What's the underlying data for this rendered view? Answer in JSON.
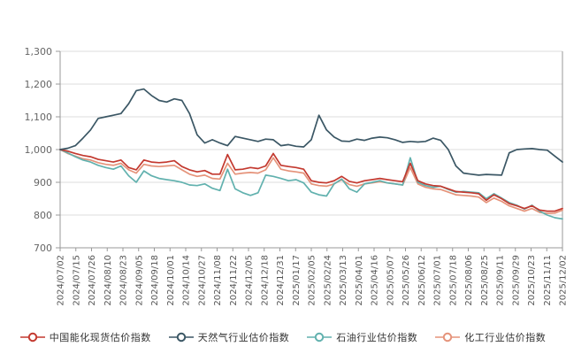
{
  "chart_data": {
    "type": "line",
    "title": "",
    "xlabel": "",
    "ylabel": "",
    "grid": true,
    "legend_position": "bottom",
    "ylim": [
      700,
      1300
    ],
    "y_tick_values": [
      700,
      800,
      900,
      1000,
      1100,
      1200,
      1300
    ],
    "y_tick_labels": [
      "700",
      "800",
      "900",
      "1,000",
      "1,100",
      "1,200",
      "1,300"
    ],
    "x_tick_labels": [
      "2024/07/02",
      "2024/07/15",
      "2024/07/26",
      "2024/08/10",
      "2024/08/23",
      "2024/09/05",
      "2024/09/18",
      "2024/10/01",
      "2024/10/14",
      "2024/10/27",
      "2024/11/08",
      "2024/11/22",
      "2024/12/05",
      "2024/12/18",
      "2024/12/31",
      "2025/01/17",
      "2025/02/05",
      "2025/02/24",
      "2025/03/13",
      "2025/04/01",
      "2025/04/16",
      "2025/05/07",
      "2025/05/26",
      "2025/06/12",
      "2025/07/01",
      "2025/07/18",
      "2025/08/06",
      "2025/08/25",
      "2025/09/11",
      "2025/09/29",
      "2025/10/23",
      "2025/11/11",
      "2025/12/02"
    ],
    "series": [
      {
        "name": "中国能化现货估价指数",
        "color": "#c3392f",
        "values": [
          1000,
          995,
          988,
          982,
          978,
          970,
          966,
          962,
          968,
          945,
          938,
          968,
          962,
          960,
          962,
          966,
          948,
          938,
          932,
          936,
          925,
          925,
          985,
          938,
          940,
          945,
          942,
          950,
          988,
          952,
          948,
          945,
          940,
          905,
          900,
          898,
          905,
          918,
          903,
          898,
          905,
          908,
          912,
          908,
          905,
          902,
          958,
          905,
          895,
          890,
          888,
          880,
          872,
          870,
          868,
          865,
          845,
          862,
          850,
          835,
          828,
          820,
          828,
          815,
          812,
          812,
          820
        ]
      },
      {
        "name": "天然气行业估价指数",
        "color": "#3b5765",
        "values": [
          1000,
          1004,
          1012,
          1035,
          1060,
          1095,
          1100,
          1105,
          1110,
          1140,
          1180,
          1185,
          1165,
          1150,
          1145,
          1155,
          1150,
          1110,
          1045,
          1020,
          1030,
          1020,
          1012,
          1040,
          1035,
          1030,
          1025,
          1032,
          1030,
          1012,
          1015,
          1010,
          1008,
          1030,
          1105,
          1060,
          1038,
          1026,
          1025,
          1032,
          1028,
          1035,
          1038,
          1036,
          1030,
          1022,
          1025,
          1023,
          1025,
          1035,
          1028,
          1000,
          950,
          928,
          925,
          922,
          924,
          923,
          922,
          990,
          1000,
          1002,
          1003,
          1000,
          998,
          980,
          962
        ]
      },
      {
        "name": "石油行业估价指数",
        "color": "#61b1ae",
        "values": [
          1000,
          990,
          978,
          968,
          962,
          952,
          945,
          940,
          950,
          920,
          900,
          935,
          920,
          912,
          908,
          905,
          900,
          892,
          890,
          895,
          882,
          875,
          940,
          880,
          868,
          860,
          868,
          922,
          918,
          912,
          905,
          908,
          898,
          870,
          862,
          858,
          895,
          910,
          880,
          870,
          895,
          900,
          905,
          898,
          895,
          892,
          975,
          900,
          890,
          885,
          888,
          878,
          870,
          872,
          870,
          868,
          850,
          865,
          852,
          838,
          830,
          818,
          830,
          812,
          800,
          792,
          788
        ]
      },
      {
        "name": "化工行业估价指数",
        "color": "#e5937a",
        "values": [
          1000,
          988,
          980,
          972,
          968,
          960,
          955,
          952,
          958,
          938,
          928,
          955,
          950,
          948,
          950,
          952,
          938,
          925,
          918,
          922,
          912,
          910,
          958,
          925,
          928,
          930,
          928,
          938,
          975,
          940,
          935,
          932,
          928,
          895,
          890,
          888,
          895,
          908,
          893,
          888,
          895,
          898,
          902,
          898,
          895,
          892,
          945,
          895,
          885,
          880,
          878,
          870,
          862,
          860,
          858,
          855,
          838,
          852,
          842,
          828,
          820,
          812,
          820,
          808,
          805,
          806,
          815
        ]
      }
    ],
    "axis_color": "#999999",
    "grid_color": "#dcdcdc",
    "tick_label_color": "#666666"
  }
}
